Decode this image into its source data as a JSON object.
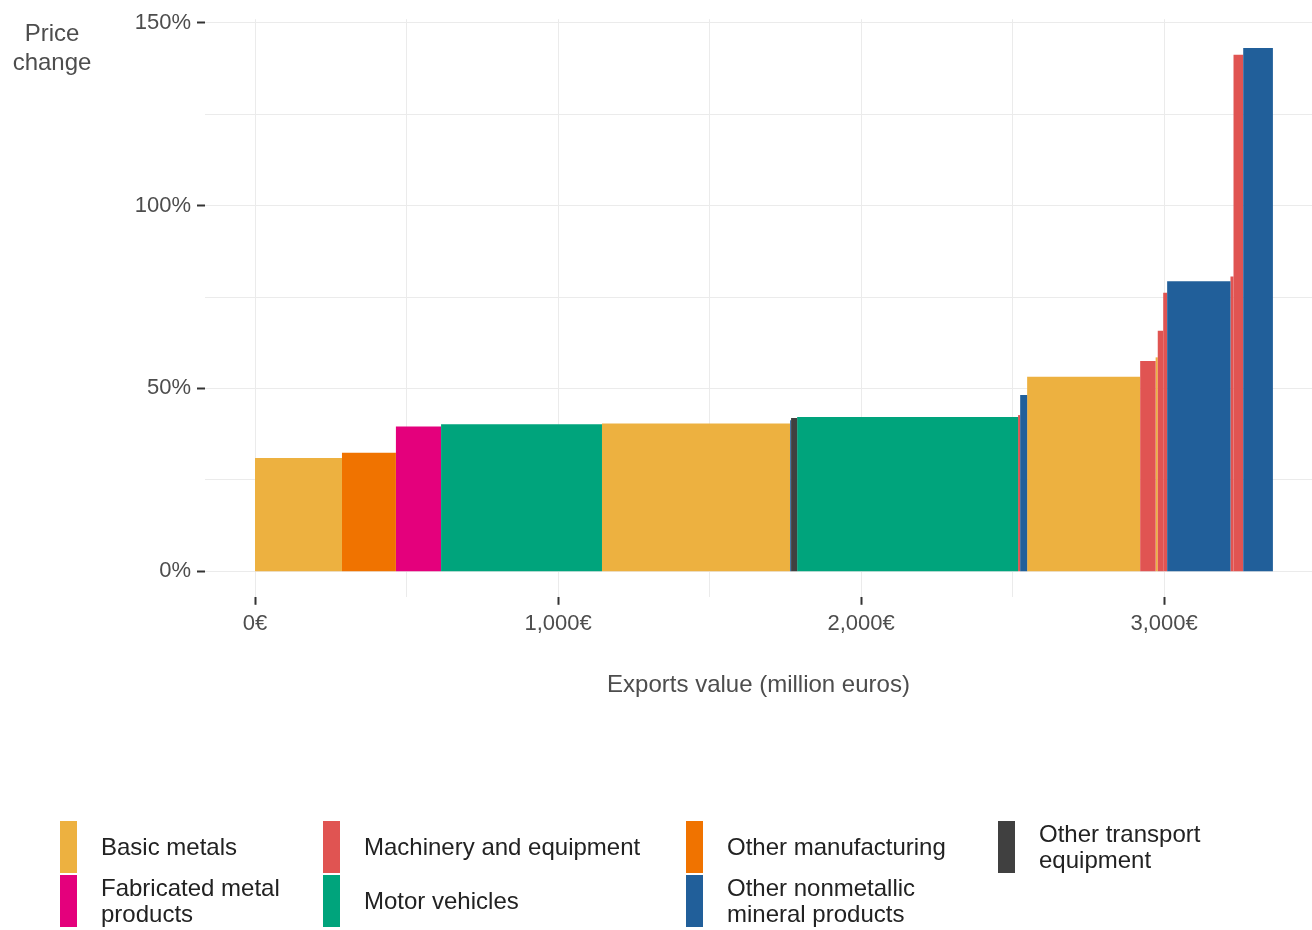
{
  "chart_data": {
    "type": "histogram",
    "ylabel": "Price change",
    "xlabel": "Exports value (million euros)",
    "bins": [
      0,
      287,
      465,
      614,
      1145,
      1766,
      1769,
      1789,
      2518,
      2525,
      2548,
      2921,
      2972,
      2979,
      2997,
      3010,
      3219,
      3229,
      3261,
      3359
    ],
    "series": [
      {
        "name": "Basic metals",
        "color": "#edb140",
        "values": [
          31.0,
          null,
          null,
          null,
          40.4,
          null,
          null,
          null,
          null,
          null,
          53.2,
          null,
          58.5,
          null,
          null,
          null,
          null,
          null,
          null
        ]
      },
      {
        "name": "Fabricated metal products",
        "color": "#e4007c",
        "values": [
          null,
          null,
          39.6,
          null,
          null,
          null,
          null,
          null,
          null,
          null,
          null,
          null,
          null,
          null,
          null,
          null,
          null,
          null,
          null
        ]
      },
      {
        "name": "Machinery and equipment",
        "color": "#e05452",
        "values": [
          null,
          null,
          null,
          null,
          null,
          null,
          null,
          null,
          42.7,
          null,
          null,
          57.5,
          null,
          65.8,
          76.2,
          null,
          80.6,
          141.3,
          null
        ]
      },
      {
        "name": "Motor vehicles",
        "color": "#00a47c",
        "values": [
          null,
          null,
          null,
          40.2,
          null,
          null,
          null,
          42.2,
          null,
          null,
          null,
          null,
          null,
          null,
          null,
          null,
          null,
          null,
          null
        ]
      },
      {
        "name": "Other manufacturing",
        "color": "#f07300",
        "values": [
          null,
          32.4,
          null,
          null,
          null,
          null,
          null,
          null,
          null,
          null,
          null,
          null,
          null,
          null,
          null,
          null,
          null,
          null,
          null
        ]
      },
      {
        "name": "Other nonmetallic mineral products",
        "color": "#215f9a",
        "values": [
          null,
          null,
          null,
          null,
          null,
          41.3,
          null,
          null,
          null,
          48.2,
          null,
          null,
          null,
          null,
          null,
          79.3,
          null,
          null,
          143.1
        ]
      },
      {
        "name": "Other transport equipment",
        "color": "#404040",
        "values": [
          null,
          null,
          null,
          null,
          null,
          null,
          41.9,
          null,
          null,
          null,
          null,
          null,
          null,
          null,
          null,
          null,
          null,
          null,
          null
        ]
      }
    ],
    "xlim": [
      -165,
      3488
    ],
    "xticks": [
      {
        "value": 0,
        "label": "0€"
      },
      {
        "value": 500,
        "label": null
      },
      {
        "value": 1000,
        "label": "1,000€"
      },
      {
        "value": 1500,
        "label": null
      },
      {
        "value": 2000,
        "label": "2,000€"
      },
      {
        "value": 2500,
        "label": null
      },
      {
        "value": 3000,
        "label": "3,000€"
      }
    ],
    "ylim": [
      -7,
      151
    ],
    "yticks": [
      {
        "value": 0,
        "label": "0%"
      },
      {
        "value": 25,
        "label": null
      },
      {
        "value": 50,
        "label": "50%"
      },
      {
        "value": 75,
        "label": null
      },
      {
        "value": 100,
        "label": "100%"
      },
      {
        "value": 125,
        "label": null
      },
      {
        "value": 150,
        "label": "150%"
      }
    ],
    "grid": true,
    "legend": "bottom"
  }
}
